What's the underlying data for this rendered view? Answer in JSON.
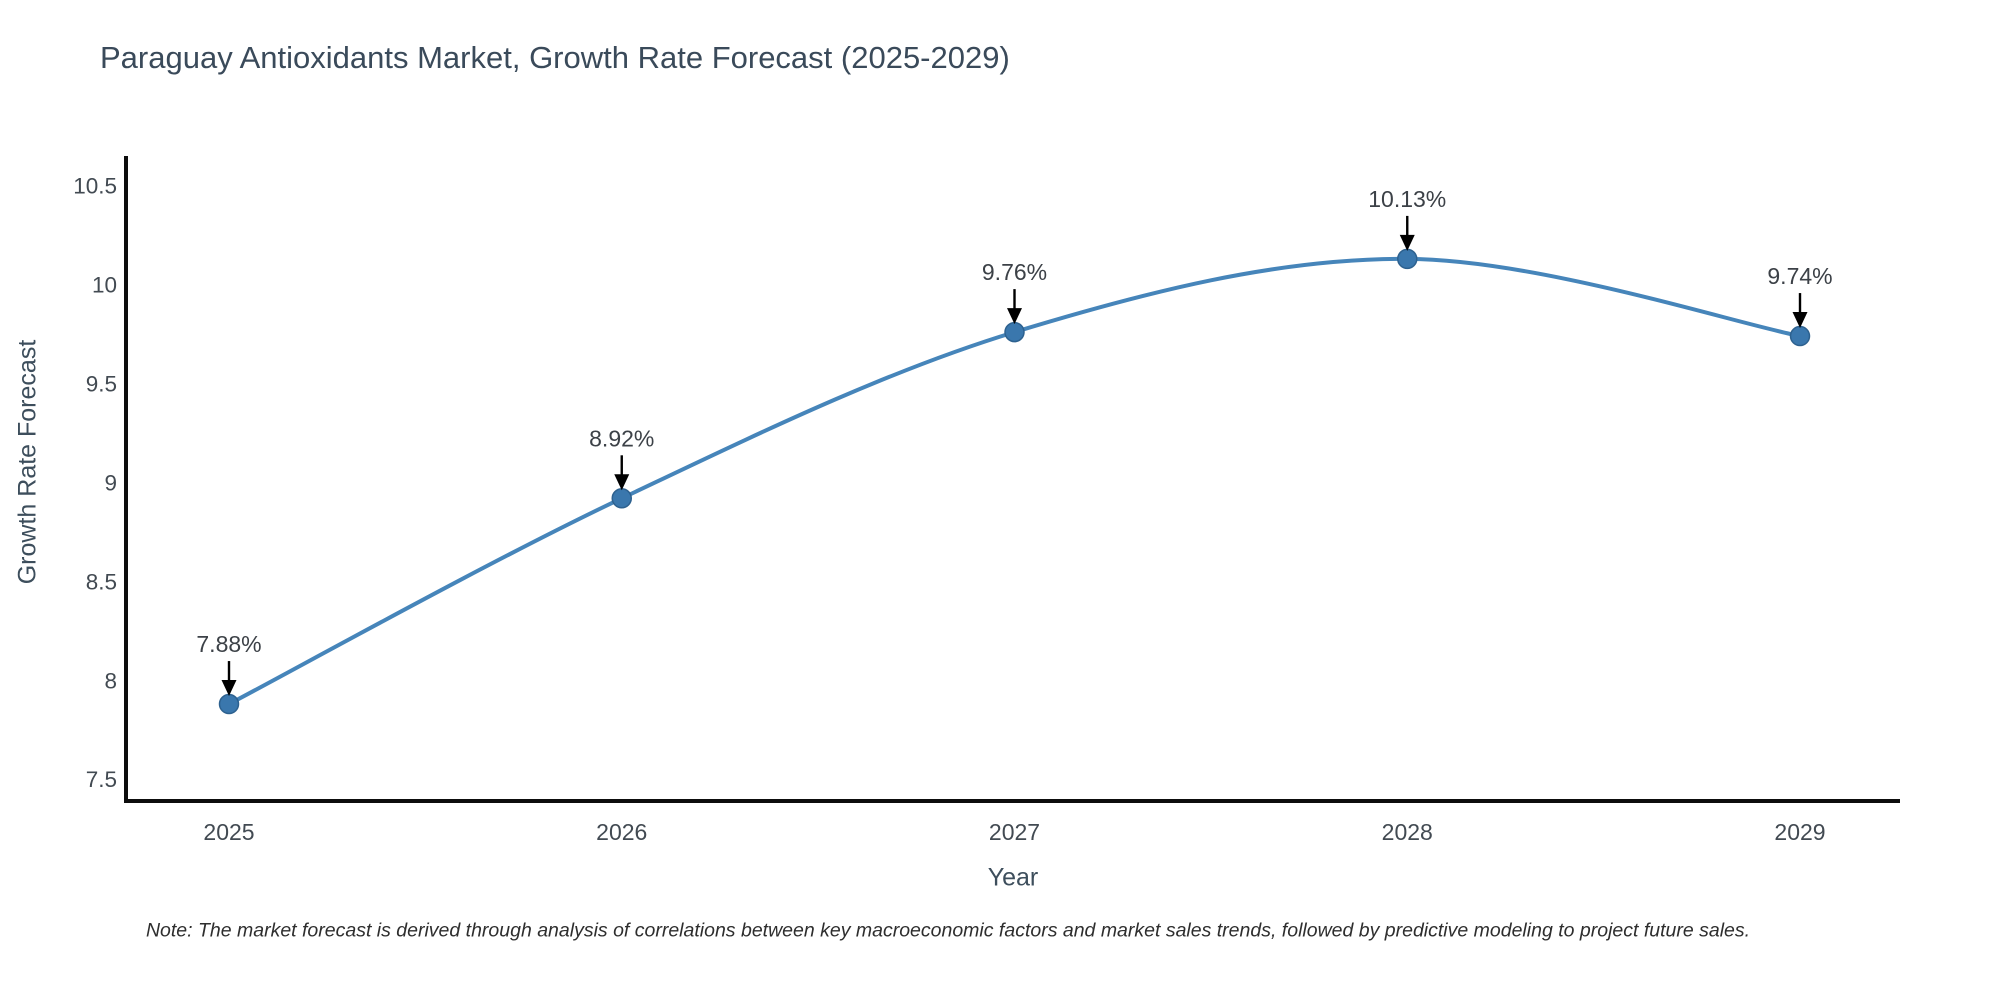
{
  "chart_data": {
    "type": "line",
    "title": "Paraguay Antioxidants Market, Growth Rate Forecast (2025-2029)",
    "xlabel": "Year",
    "ylabel": "Growth Rate Forecast",
    "x": [
      "2025",
      "2026",
      "2027",
      "2028",
      "2029"
    ],
    "values": [
      7.88,
      8.92,
      9.76,
      10.13,
      9.74
    ],
    "point_labels": [
      "7.88%",
      "8.92%",
      "9.76%",
      "10.13%",
      "9.74%"
    ],
    "ytick_values": [
      7.5,
      8,
      8.5,
      9,
      9.5,
      10,
      10.5
    ],
    "ytick_labels": [
      "7.5",
      "8",
      "8.5",
      "9",
      "9.5",
      "10",
      "10.5"
    ],
    "ylim": [
      7.39,
      10.64
    ],
    "grid": false,
    "legend_position": "none",
    "note": "Note: The market forecast is derived through analysis of correlations between key macroeconomic factors and market sales trends, followed by predictive modeling to project future sales.",
    "colors": {
      "line": "#4685ba",
      "marker": "#3a77ad",
      "marker_edge": "#2d618f",
      "arrow": "#000000",
      "axis": "#0d0d0d",
      "title_text": "#3a4a5a",
      "tick_text": "#424a52",
      "annotation_text": "#3c4147",
      "note_text": "#2e2e2e"
    }
  }
}
